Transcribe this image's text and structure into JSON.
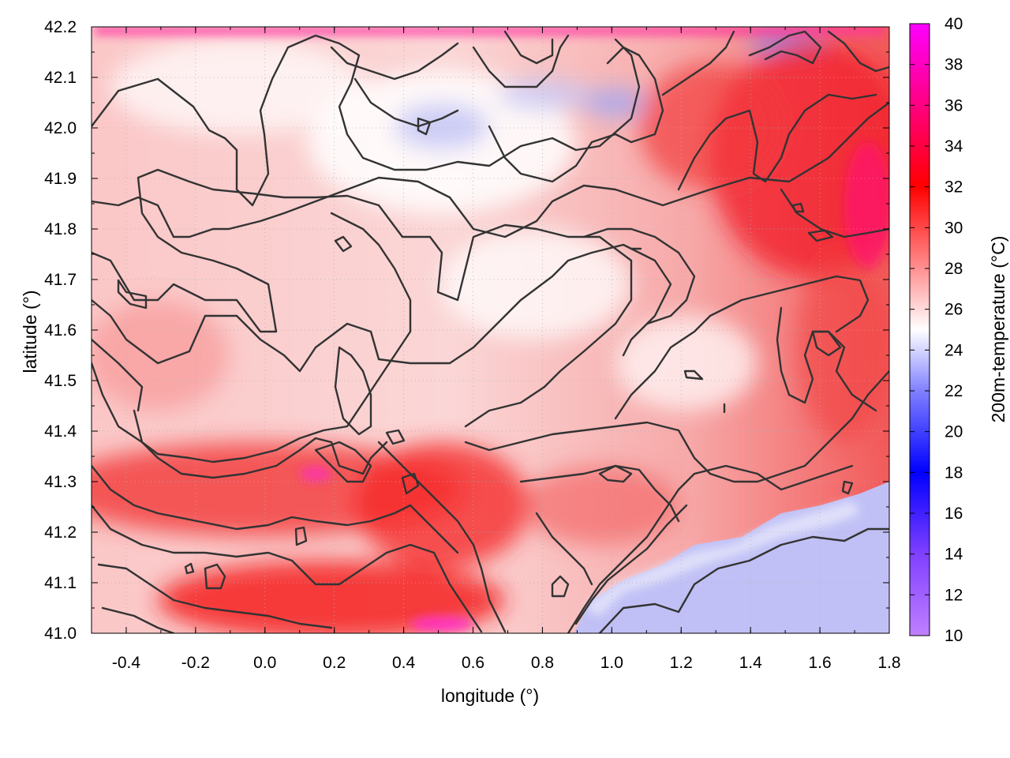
{
  "chart_data": {
    "type": "heatmap",
    "xlabel": "longitude (°)",
    "ylabel": "latitude (°)",
    "colorbar_label": "200m-temperature (°C)",
    "xlim": [
      -0.5,
      1.8
    ],
    "ylim": [
      41.0,
      42.2
    ],
    "x_ticks": [
      "-0.4",
      "-0.2",
      "0.0",
      "0.2",
      "0.4",
      "0.6",
      "0.8",
      "1.0",
      "1.2",
      "1.4",
      "1.6",
      "1.8"
    ],
    "x_tick_values": [
      -0.4,
      -0.2,
      0.0,
      0.2,
      0.4,
      0.6,
      0.8,
      1.0,
      1.2,
      1.4,
      1.6,
      1.8
    ],
    "y_ticks": [
      "41.0",
      "41.1",
      "41.2",
      "41.3",
      "41.4",
      "41.5",
      "41.6",
      "41.7",
      "41.8",
      "41.9",
      "42.0",
      "42.1",
      "42.2"
    ],
    "y_tick_values": [
      41.0,
      41.1,
      41.2,
      41.3,
      41.4,
      41.5,
      41.6,
      41.7,
      41.8,
      41.9,
      42.0,
      42.1,
      42.2
    ],
    "colorbar_range": [
      10,
      40
    ],
    "colorbar_ticks": [
      "10",
      "12",
      "14",
      "16",
      "18",
      "20",
      "22",
      "24",
      "26",
      "28",
      "30",
      "32",
      "34",
      "36",
      "38",
      "40"
    ],
    "colorbar_tick_values": [
      10,
      12,
      14,
      16,
      18,
      20,
      22,
      24,
      26,
      28,
      30,
      32,
      34,
      36,
      38,
      40
    ],
    "colormap": [
      {
        "value": 10,
        "color": "#c080ff"
      },
      {
        "value": 14,
        "color": "#8040ff"
      },
      {
        "value": 18,
        "color": "#0000ff"
      },
      {
        "value": 22,
        "color": "#8080ff"
      },
      {
        "value": 25,
        "color": "#ffffff"
      },
      {
        "value": 28,
        "color": "#ff9090"
      },
      {
        "value": 32,
        "color": "#ff0000"
      },
      {
        "value": 36,
        "color": "#ff0080"
      },
      {
        "value": 40,
        "color": "#ff00ff"
      }
    ],
    "grid": true,
    "contours": true
  }
}
